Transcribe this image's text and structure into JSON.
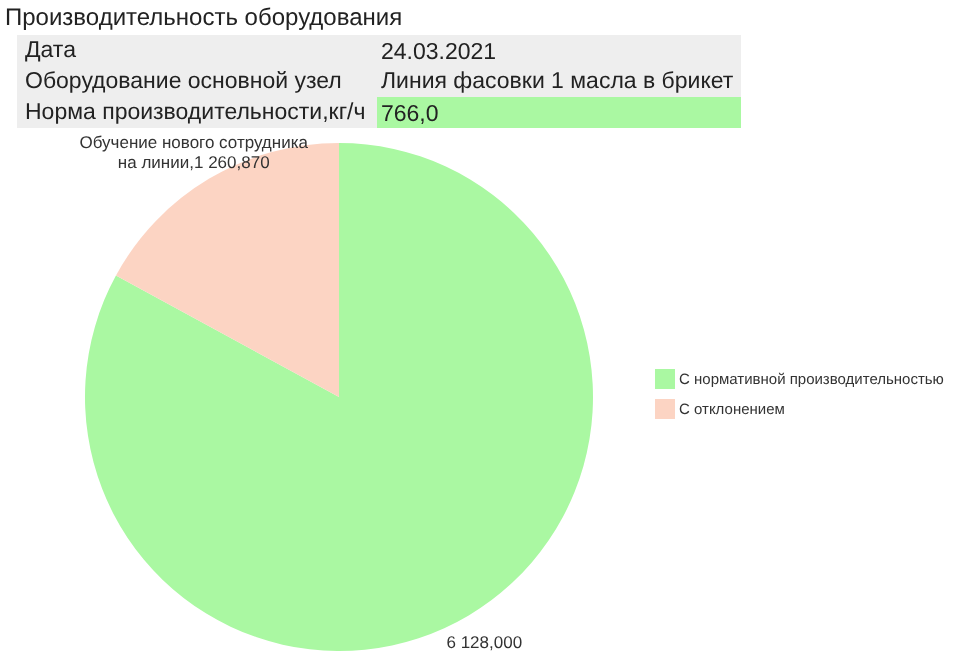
{
  "chart_data": {
    "type": "pie",
    "title": "Производительность оборудования",
    "annotations": [
      "Дата",
      "24.03.2021",
      "Оборудование основной узел",
      "Линия фасовки 1 масла в брикет",
      "Норма производительности,кг/ч",
      "766,0"
    ],
    "categories": [
      "С нормативной производительностью",
      "С отклонением"
    ],
    "values": [
      82.94,
      17.06
    ],
    "colors": [
      "#aaf8a2",
      "#fcd4c3"
    ],
    "value_labels": [
      "6 128,000",
      "Обучение нового сотрудника\nна линии,1 260,870"
    ],
    "legend": "right"
  }
}
